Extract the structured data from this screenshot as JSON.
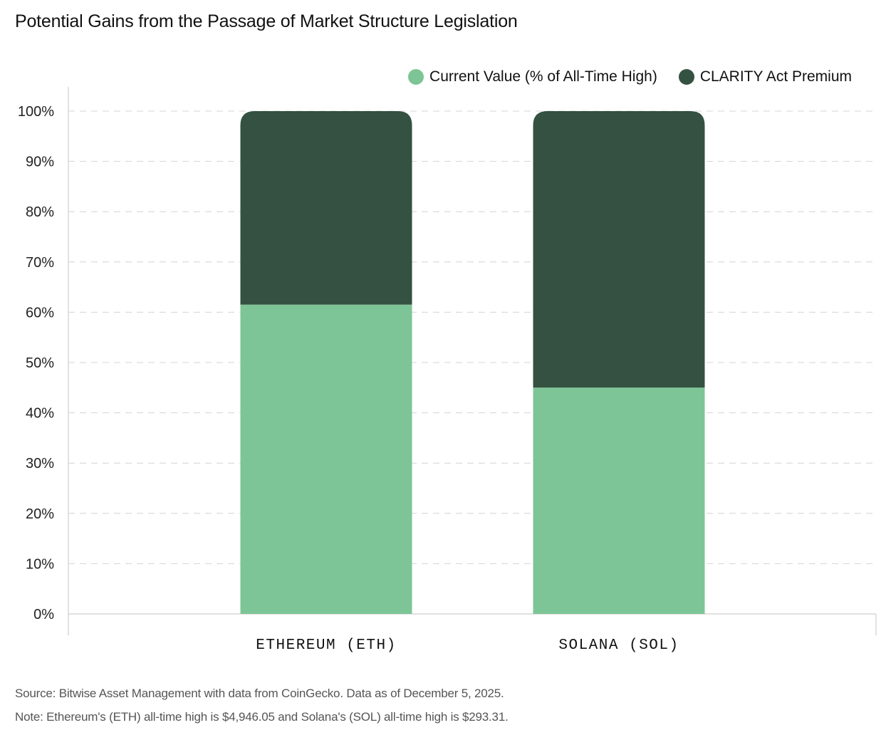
{
  "title": "Potential Gains from the Passage of Market Structure Legislation",
  "colors": {
    "current": "#7dc596",
    "premium": "#345141",
    "grid": "#d4d4d4",
    "axis": "#cfcfcf"
  },
  "legend": [
    {
      "label": "Current Value (% of All-Time High)",
      "color": "#7dc596"
    },
    {
      "label": "CLARITY Act Premium",
      "color": "#345141"
    }
  ],
  "chart_data": {
    "type": "bar",
    "stacked": true,
    "categories": [
      "ETHEREUM (ETH)",
      "SOLANA (SOL)"
    ],
    "series": [
      {
        "name": "Current Value (% of All-Time High)",
        "values": [
          61.5,
          45
        ]
      },
      {
        "name": "CLARITY Act Premium",
        "values": [
          38.5,
          55
        ]
      }
    ],
    "ylim": [
      0,
      100
    ],
    "yticks": [
      "0%",
      "10%",
      "20%",
      "30%",
      "40%",
      "50%",
      "60%",
      "70%",
      "80%",
      "90%",
      "100%"
    ],
    "grid": true,
    "legend_position": "top-right"
  },
  "footnotes": {
    "source": "Source: Bitwise Asset Management with data from CoinGecko. Data as of December 5, 2025.",
    "note": "Note: Ethereum's (ETH) all-time high is $4,946.05 and Solana's (SOL) all-time high is $293.31."
  }
}
